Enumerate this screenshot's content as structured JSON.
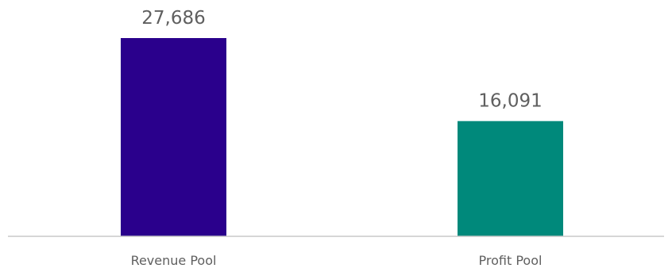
{
  "chart_data": {
    "type": "bar",
    "categories": [
      "Revenue Pool",
      "Profit Pool"
    ],
    "values": [
      27686,
      16091
    ],
    "value_labels": [
      "27,686",
      "16,091"
    ],
    "colors": [
      "#2a008c",
      "#00897b"
    ],
    "ylim": [
      0,
      27686
    ],
    "grid": false,
    "title": "",
    "xlabel": "",
    "ylabel": ""
  }
}
